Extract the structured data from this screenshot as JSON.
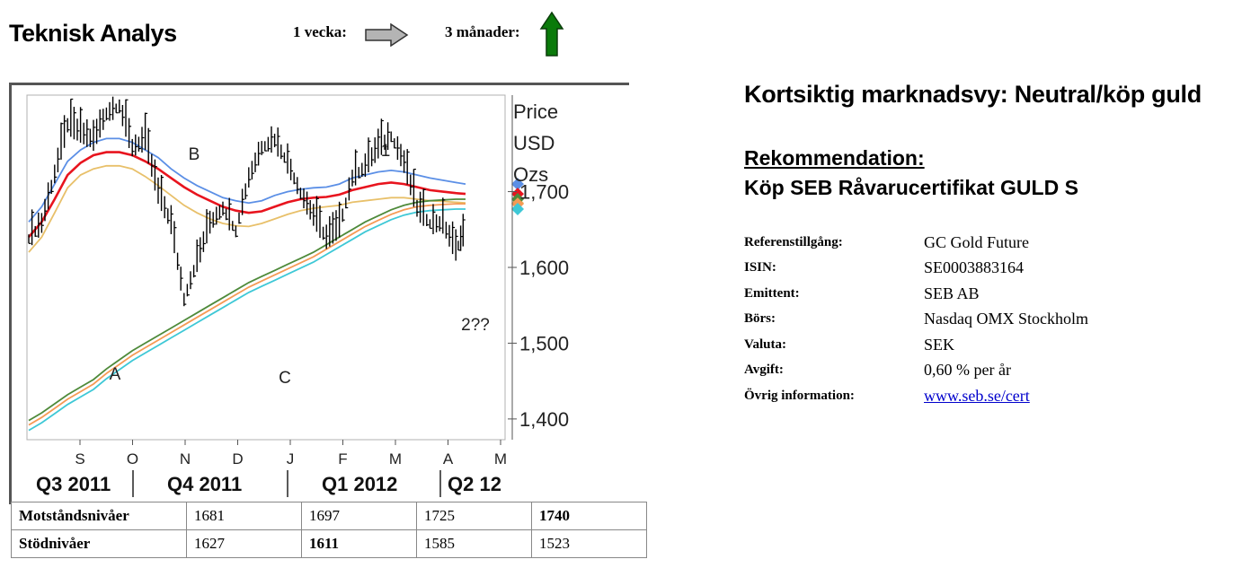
{
  "header": {
    "title": "Teknisk Analys",
    "trend_week_label": "1 vecka:",
    "trend_month_label": "3 månader:",
    "trend_week_icon": "arrow-right-icon",
    "trend_month_icon": "arrow-up-icon",
    "trend_week_color": "#b4b4b4",
    "trend_month_color": "#0a7a0a"
  },
  "chart_data": {
    "type": "line",
    "title": "",
    "ylabel": [
      "Price",
      "USD",
      "Ozs"
    ],
    "ylim": [
      1375,
      1825
    ],
    "yticks": [
      1400,
      1500,
      1600,
      1700
    ],
    "ytick_labels": [
      "1,400",
      "1,500",
      "1,600",
      "1,700"
    ],
    "x_months": [
      "S",
      "O",
      "N",
      "D",
      "J",
      "F",
      "M",
      "A",
      "M"
    ],
    "quarters": [
      "Q3 2011",
      "Q4 2011",
      "Q1 2012",
      "Q2 12"
    ],
    "annotations": [
      "A",
      "B",
      "C",
      "1",
      "2??"
    ],
    "colors": {
      "price": "#000000",
      "ma_blue": "#5b8fe6",
      "ma_red": "#e8141e",
      "ma_yellow": "#e8c06a",
      "ma_green": "#4e8a3a",
      "ma_orange": "#f59a55",
      "ma_cyan": "#3ec8d6"
    },
    "x": [
      0,
      4,
      8,
      12,
      16,
      20,
      24,
      28,
      32,
      36,
      40,
      44,
      48,
      52,
      56,
      60,
      64,
      68,
      72,
      76,
      80,
      84,
      88,
      92,
      96,
      100,
      104,
      108,
      112,
      116,
      120,
      124,
      128,
      132,
      135
    ],
    "series": [
      {
        "key": "price",
        "values": [
          1640,
          1660,
          1725,
          1790,
          1780,
          1770,
          1805,
          1815,
          1760,
          1770,
          1700,
          1660,
          1560,
          1610,
          1660,
          1680,
          1650,
          1720,
          1760,
          1770,
          1740,
          1700,
          1670,
          1640,
          1655,
          1720,
          1735,
          1760,
          1775,
          1740,
          1680,
          1660,
          1660,
          1625,
          1650
        ]
      },
      {
        "key": "ma_blue",
        "values": [
          1660,
          1680,
          1710,
          1740,
          1755,
          1765,
          1770,
          1770,
          1765,
          1755,
          1745,
          1730,
          1718,
          1708,
          1700,
          1692,
          1688,
          1685,
          1688,
          1695,
          1700,
          1703,
          1705,
          1706,
          1710,
          1718,
          1722,
          1726,
          1728,
          1726,
          1722,
          1718,
          1715,
          1712,
          1710
        ]
      },
      {
        "key": "ma_red",
        "values": [
          1640,
          1660,
          1690,
          1722,
          1738,
          1748,
          1752,
          1752,
          1748,
          1740,
          1730,
          1718,
          1706,
          1696,
          1688,
          1680,
          1675,
          1672,
          1674,
          1680,
          1686,
          1690,
          1692,
          1693,
          1696,
          1702,
          1706,
          1710,
          1712,
          1710,
          1706,
          1702,
          1700,
          1698,
          1697
        ]
      },
      {
        "key": "ma_yellow",
        "values": [
          1620,
          1640,
          1672,
          1705,
          1722,
          1730,
          1734,
          1734,
          1730,
          1720,
          1708,
          1695,
          1682,
          1672,
          1664,
          1658,
          1655,
          1654,
          1658,
          1664,
          1670,
          1675,
          1678,
          1680,
          1682,
          1686,
          1688,
          1690,
          1692,
          1692,
          1690,
          1688,
          1687,
          1686,
          1685
        ]
      },
      {
        "key": "ma_green",
        "values": [
          1398,
          1408,
          1420,
          1432,
          1442,
          1452,
          1466,
          1478,
          1490,
          1500,
          1510,
          1520,
          1530,
          1540,
          1550,
          1560,
          1570,
          1580,
          1588,
          1596,
          1604,
          1612,
          1620,
          1630,
          1640,
          1650,
          1660,
          1668,
          1676,
          1682,
          1686,
          1688,
          1689,
          1690,
          1690
        ]
      },
      {
        "key": "ma_orange",
        "values": [
          1392,
          1402,
          1414,
          1426,
          1436,
          1446,
          1460,
          1472,
          1484,
          1494,
          1504,
          1514,
          1524,
          1534,
          1544,
          1554,
          1564,
          1574,
          1582,
          1590,
          1598,
          1606,
          1614,
          1624,
          1634,
          1644,
          1654,
          1662,
          1670,
          1676,
          1680,
          1682,
          1683,
          1684,
          1684
        ]
      },
      {
        "key": "ma_cyan",
        "values": [
          1385,
          1395,
          1407,
          1419,
          1429,
          1439,
          1453,
          1465,
          1477,
          1487,
          1497,
          1507,
          1517,
          1527,
          1537,
          1547,
          1557,
          1567,
          1575,
          1583,
          1591,
          1599,
          1607,
          1617,
          1627,
          1637,
          1647,
          1655,
          1663,
          1669,
          1673,
          1675,
          1676,
          1677,
          1677
        ]
      }
    ]
  },
  "levels": {
    "resistance": {
      "label": "Motståndsnivåer",
      "values": [
        "1681",
        "1697",
        "1725",
        "1740"
      ],
      "bold_index": 3
    },
    "support": {
      "label": "Stödnivåer",
      "values": [
        "1627",
        "1611",
        "1585",
        "1523"
      ],
      "bold_index": 1
    }
  },
  "view": {
    "title": "Kortsiktig marknadsvy: Neutral/köp guld",
    "rec_heading": "Rekommendation:",
    "rec_text": "Köp SEB Råvarucertifikat GULD S"
  },
  "info": [
    {
      "key": "Referenstillgång:",
      "value": "GC Gold Future"
    },
    {
      "key": "ISIN:",
      "value": "SE0003883164"
    },
    {
      "key": "Emittent:",
      "value": "SEB AB"
    },
    {
      "key": "Börs:",
      "value": "Nasdaq OMX Stockholm"
    },
    {
      "key": "Valuta:",
      "value": "SEK"
    },
    {
      "key": "Avgift:",
      "value": "0,60 % per år"
    },
    {
      "key": "Övrig information:",
      "value": "www.seb.se/cert",
      "link": true
    }
  ]
}
